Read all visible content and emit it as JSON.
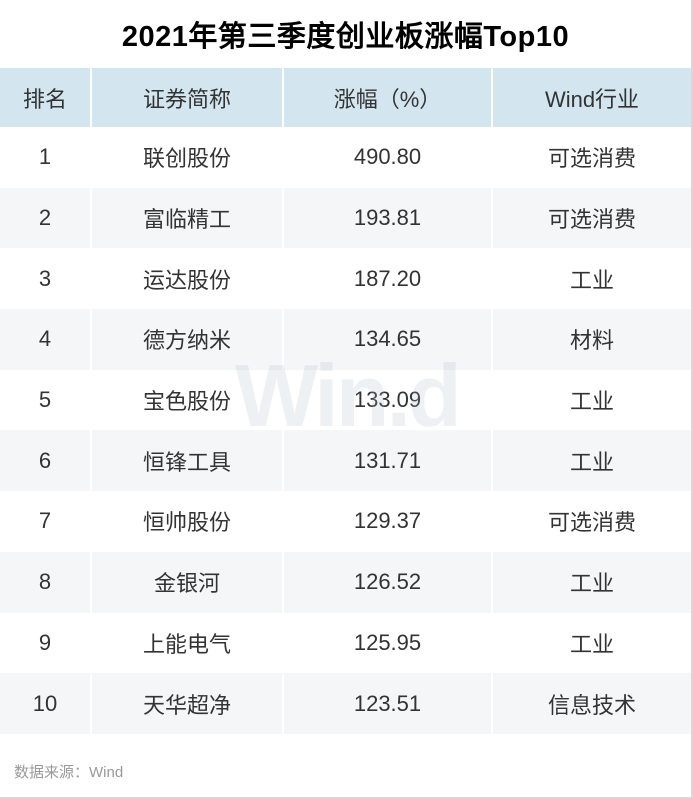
{
  "title": "2021年第三季度创业板涨幅Top10",
  "watermark_text": "Win.d",
  "footer": {
    "source_label": "数据来源：Wind"
  },
  "table": {
    "columns": [
      "排名",
      "证券简称",
      "涨幅（%）",
      "Wind行业"
    ],
    "rows": [
      {
        "rank": "1",
        "name": "联创股份",
        "change": "490.80",
        "industry": "可选消费"
      },
      {
        "rank": "2",
        "name": "富临精工",
        "change": "193.81",
        "industry": "可选消费"
      },
      {
        "rank": "3",
        "name": "运达股份",
        "change": "187.20",
        "industry": "工业"
      },
      {
        "rank": "4",
        "name": "德方纳米",
        "change": "134.65",
        "industry": "材料"
      },
      {
        "rank": "5",
        "name": "宝色股份",
        "change": "133.09",
        "industry": "工业"
      },
      {
        "rank": "6",
        "name": "恒锋工具",
        "change": "131.71",
        "industry": "工业"
      },
      {
        "rank": "7",
        "name": "恒帅股份",
        "change": "129.37",
        "industry": "可选消费"
      },
      {
        "rank": "8",
        "name": "金银河",
        "change": "126.52",
        "industry": "工业"
      },
      {
        "rank": "9",
        "name": "上能电气",
        "change": "125.95",
        "industry": "工业"
      },
      {
        "rank": "10",
        "name": "天华超净",
        "change": "123.51",
        "industry": "信息技术"
      }
    ]
  },
  "colors": {
    "header_bg": "#d3e5ef",
    "alt_row_bg": "#f4f6f7",
    "cell_text": "#333333",
    "title_text": "#000000",
    "source_text": "#999999",
    "edge_border": "#d8d8d8",
    "watermark": "#ebeff2"
  },
  "chart_data": {
    "type": "table",
    "title": "2021年第三季度创业板涨幅Top10",
    "columns": [
      "排名",
      "证券简称",
      "涨幅（%）",
      "Wind行业"
    ],
    "rows": [
      [
        1,
        "联创股份",
        490.8,
        "可选消费"
      ],
      [
        2,
        "富临精工",
        193.81,
        "可选消费"
      ],
      [
        3,
        "运达股份",
        187.2,
        "工业"
      ],
      [
        4,
        "德方纳米",
        134.65,
        "材料"
      ],
      [
        5,
        "宝色股份",
        133.09,
        "工业"
      ],
      [
        6,
        "恒锋工具",
        131.71,
        "工业"
      ],
      [
        7,
        "恒帅股份",
        129.37,
        "可选消费"
      ],
      [
        8,
        "金银河",
        126.52,
        "工业"
      ],
      [
        9,
        "上能电气",
        125.95,
        "工业"
      ],
      [
        10,
        "天华超净",
        123.51,
        "信息技术"
      ]
    ],
    "source": "数据来源：Wind"
  }
}
